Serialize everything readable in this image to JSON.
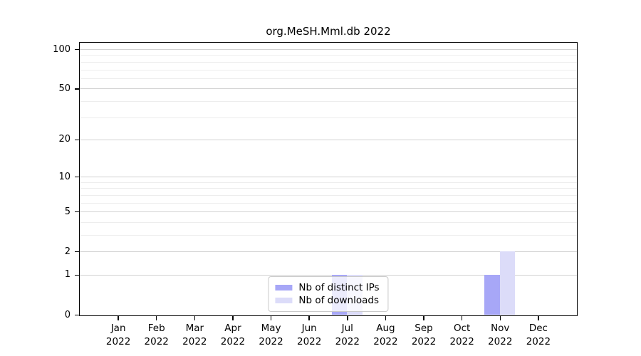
{
  "title": "org.MeSH.Mml.db 2022",
  "chart_data": {
    "type": "bar",
    "title": "org.MeSH.Mml.db 2022",
    "categories": [
      "Jan",
      "Feb",
      "Mar",
      "Apr",
      "May",
      "Jun",
      "Jul",
      "Aug",
      "Sep",
      "Oct",
      "Nov",
      "Dec"
    ],
    "x_tick_sublabel": "2022",
    "series": [
      {
        "name": "Nb of distinct IPs",
        "color": "#a7a7f7",
        "values": [
          0,
          0,
          0,
          0,
          0,
          0,
          1,
          0,
          0,
          0,
          1,
          0
        ]
      },
      {
        "name": "Nb of downloads",
        "color": "#dcdcf9",
        "values": [
          0,
          0,
          0,
          0,
          0,
          0,
          1,
          0,
          0,
          0,
          2,
          0
        ]
      }
    ],
    "yscale": "log1p",
    "yticks": [
      0,
      1,
      2,
      5,
      10,
      20,
      50,
      100
    ],
    "yticks_minor": [
      3,
      4,
      6,
      7,
      8,
      9,
      30,
      40,
      60,
      70,
      80,
      90
    ],
    "ylim": [
      0,
      112
    ],
    "grid": true,
    "legend_position": "bottom-center"
  },
  "colors": {
    "grid_major": "#d2d2d2",
    "grid_minor": "#ededed",
    "spine": "#000000",
    "legend_border": "#c9c9c9"
  }
}
